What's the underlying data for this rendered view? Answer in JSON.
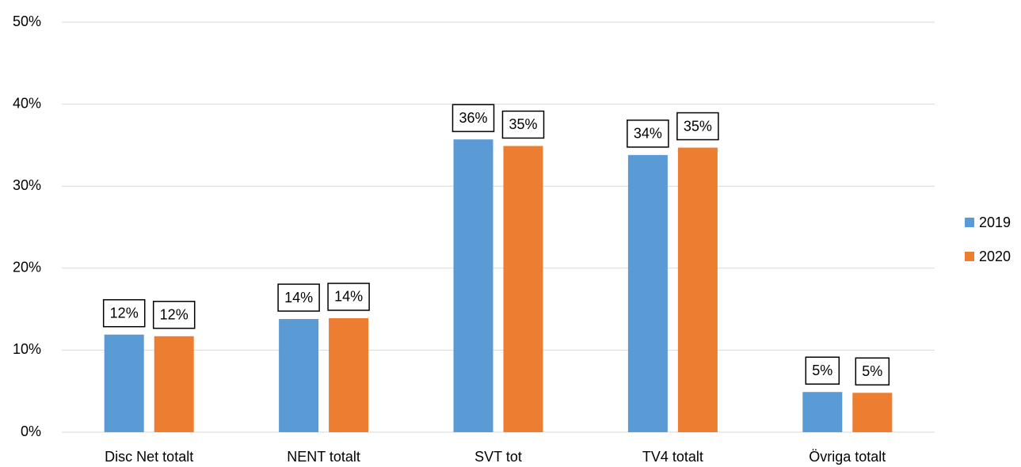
{
  "chart_data": {
    "type": "bar",
    "categories": [
      "Disc Net totalt",
      "NENT totalt",
      "SVT tot",
      "TV4 totalt",
      "Övriga totalt"
    ],
    "series": [
      {
        "name": "2019",
        "color": "#5b9bd5",
        "values": [
          11.9,
          13.8,
          35.7,
          33.8,
          4.9
        ],
        "value_labels": [
          "12%",
          "14%",
          "36%",
          "34%",
          "5%"
        ]
      },
      {
        "name": "2020",
        "color": "#ed7d31",
        "values": [
          11.7,
          13.9,
          34.9,
          34.7,
          4.8
        ],
        "value_labels": [
          "12%",
          "14%",
          "35%",
          "35%",
          "5%"
        ]
      }
    ],
    "ylim": [
      0,
      50
    ],
    "yticks": [
      {
        "value": 0,
        "label": "0%"
      },
      {
        "value": 10,
        "label": "10%"
      },
      {
        "value": 20,
        "label": "20%"
      },
      {
        "value": 30,
        "label": "30%"
      },
      {
        "value": 40,
        "label": "40%"
      },
      {
        "value": 50,
        "label": "50%"
      }
    ],
    "grid": true,
    "legend": "right"
  }
}
